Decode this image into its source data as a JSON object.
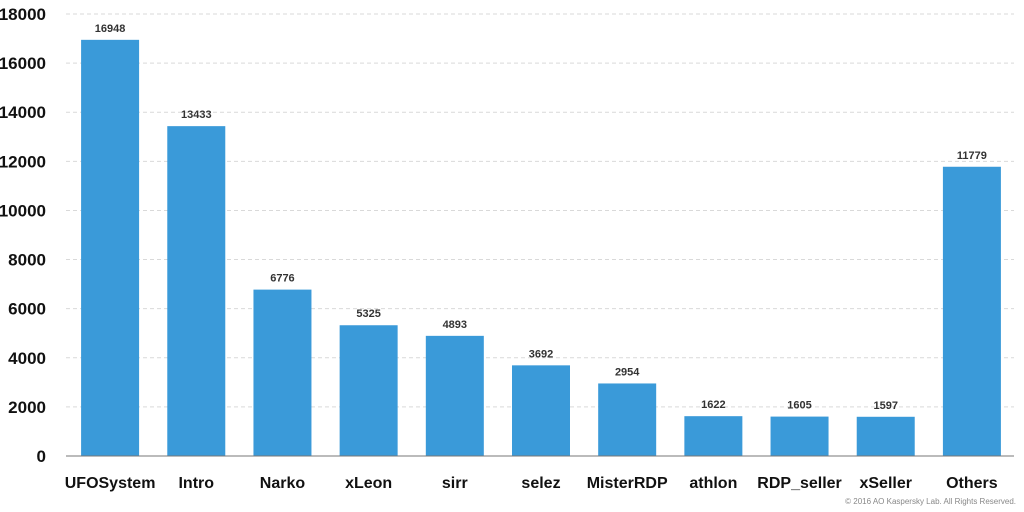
{
  "chart_data": {
    "type": "bar",
    "categories": [
      "UFOSystem",
      "Intro",
      "Narko",
      "xLeon",
      "sirr",
      "selez",
      "MisterRDP",
      "athlon",
      "RDP_seller",
      "xSeller",
      "Others"
    ],
    "values": [
      16948,
      13433,
      6776,
      5325,
      4893,
      3692,
      2954,
      1622,
      1605,
      1597,
      11779
    ],
    "value_labels": [
      "16948",
      "13433",
      "6776",
      "5325",
      "4893",
      "3692",
      "2954",
      "1622",
      "1605",
      "1597",
      "11779"
    ],
    "y_ticks": [
      "0",
      "2000",
      "4000",
      "6000",
      "8000",
      "10000",
      "12000",
      "14000",
      "16000",
      "18000"
    ],
    "ylim": [
      0,
      18000
    ],
    "grid": true,
    "bar_color": "#3a9ad9"
  },
  "footer": {
    "copyright": "© 2016 AO Kaspersky Lab. All Rights Reserved."
  }
}
